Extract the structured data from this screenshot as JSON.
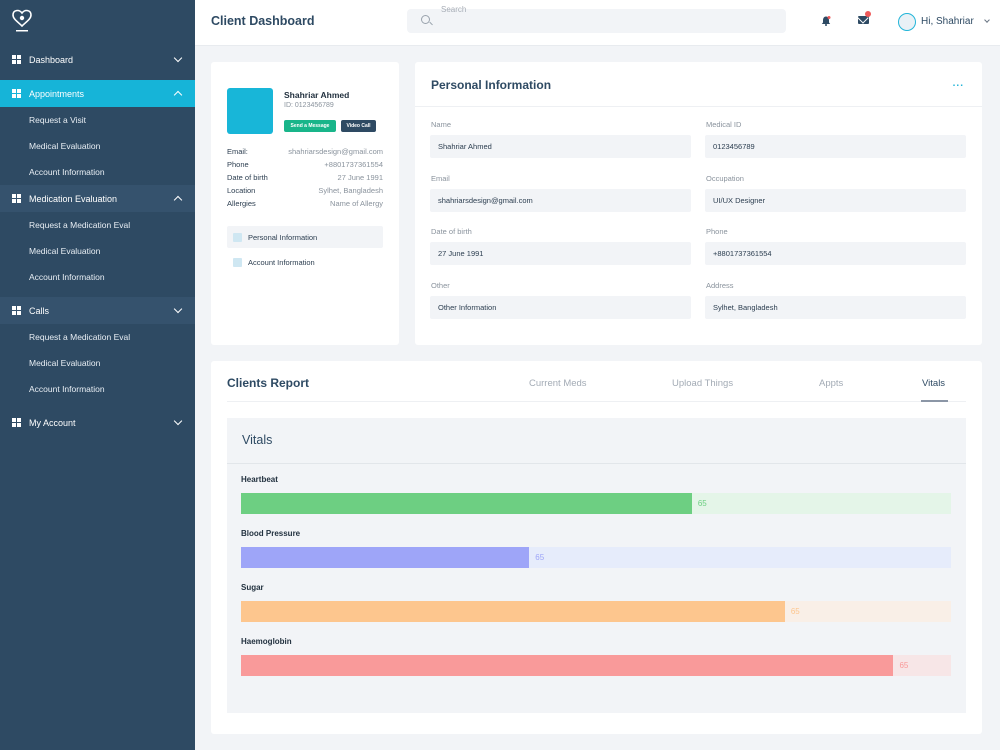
{
  "sidebar": {
    "groups": [
      {
        "label": "Dashboard",
        "items": []
      },
      {
        "label": "Appointments",
        "items": [
          "Request a Visit",
          "Medical Evaluation",
          "Account Information"
        ]
      },
      {
        "label": "Medication Evaluation",
        "items": [
          "Request a Medication Eval",
          "Medical Evaluation",
          "Account Information"
        ]
      },
      {
        "label": "Calls",
        "items": [
          "Request a Medication Eval",
          "Medical Evaluation",
          "Account Information"
        ]
      },
      {
        "label": "My Account",
        "items": []
      }
    ]
  },
  "header": {
    "title": "Client Dashboard",
    "search_placeholder": "Search",
    "greeting": "Hi, Shahriar"
  },
  "profile": {
    "name": "Shahriar Ahmed",
    "id": "ID: 0123456789",
    "send_message": "Send a Message",
    "video_call": "Video Call",
    "details": [
      {
        "label": "Email:",
        "value": "shahriarsdesign@gmail.com"
      },
      {
        "label": "Phone",
        "value": "+8801737361554"
      },
      {
        "label": "Date of birth",
        "value": "27 June 1991"
      },
      {
        "label": "Location",
        "value": "Sylhet, Bangladesh"
      },
      {
        "label": "Allergies",
        "value": "Name of Allergy"
      }
    ],
    "nav": [
      "Personal Information",
      "Account Information"
    ]
  },
  "personal": {
    "title": "Personal Information",
    "more": "...",
    "fields": [
      {
        "label": "Name",
        "value": "Shahriar Ahmed"
      },
      {
        "label": "Medical ID",
        "value": "0123456789"
      },
      {
        "label": "Email",
        "value": "shahriarsdesign@gmail.com"
      },
      {
        "label": "Occupation",
        "value": "UI/UX Designer"
      },
      {
        "label": "Date of birth",
        "value": "27 June 1991"
      },
      {
        "label": "Phone",
        "value": "+8801737361554"
      },
      {
        "label": "Other",
        "value": "Other Information"
      },
      {
        "label": "Address",
        "value": "Sylhet, Bangladesh"
      }
    ]
  },
  "report": {
    "title": "Clients Report",
    "tabs": [
      "Current Meds",
      "Upload Things",
      "Appts",
      "Vitals"
    ],
    "active_tab": "Vitals",
    "vitals_title": "Vitals",
    "bars": [
      {
        "label": "Heartbeat",
        "value": "65",
        "fraction": 0.635,
        "color": "#6dcf82",
        "track": "#e4f5e8"
      },
      {
        "label": "Blood Pressure",
        "value": "65",
        "fraction": 0.406,
        "color": "#9ea5f8",
        "track": "#e6ecfb"
      },
      {
        "label": "Sugar",
        "value": "65",
        "fraction": 0.766,
        "color": "#fdc68e",
        "track": "#f9efe7"
      },
      {
        "label": "Haemoglobin",
        "value": "65",
        "fraction": 0.919,
        "color": "#f99a9a",
        "track": "#f7e6e7"
      }
    ]
  },
  "colors": {
    "sidebar": "#2e4a63",
    "active_group": "#16b4d8",
    "group_bg": "#35526d",
    "accent": "#23b5d8"
  }
}
